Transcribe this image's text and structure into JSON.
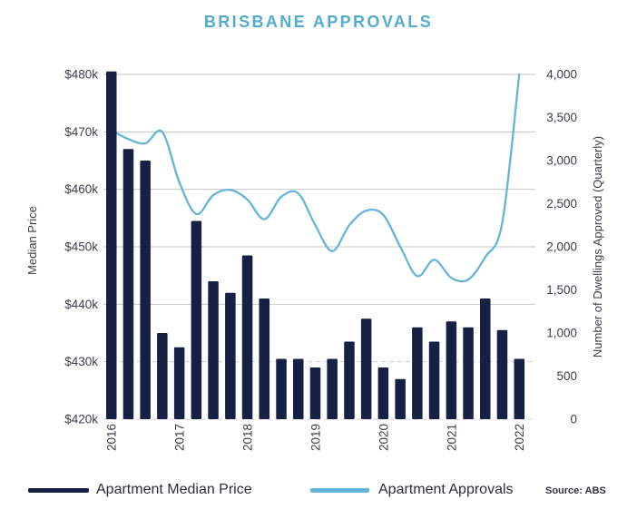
{
  "title": "BRISBANE APPROVALS",
  "source": "Source: ABS",
  "left_axis": {
    "label": "Median Price",
    "min": 420,
    "max": 480,
    "ticks": [
      {
        "value": 480,
        "label": "$480k"
      },
      {
        "value": 470,
        "label": "$470k"
      },
      {
        "value": 460,
        "label": "$460k"
      },
      {
        "value": 450,
        "label": "$450k"
      },
      {
        "value": 440,
        "label": "$440k"
      },
      {
        "value": 430,
        "label": "$430k"
      },
      {
        "value": 420,
        "label": "$420k"
      }
    ]
  },
  "right_axis": {
    "label": "Number of Dwellings Approved (Quarterly)",
    "min": 0,
    "max": 4000,
    "ticks": [
      {
        "value": 4000,
        "label": "4,000"
      },
      {
        "value": 3500,
        "label": "3,500"
      },
      {
        "value": 3000,
        "label": "3,000"
      },
      {
        "value": 2500,
        "label": "2,500"
      },
      {
        "value": 2000,
        "label": "2,000"
      },
      {
        "value": 1500,
        "label": "1,500"
      },
      {
        "value": 1000,
        "label": "1,000"
      },
      {
        "value": 500,
        "label": "500"
      },
      {
        "value": 0,
        "label": "0"
      }
    ]
  },
  "chart_data": {
    "type": "bar+line",
    "x": [
      "2016 Q1",
      "2016 Q2",
      "2016 Q3",
      "2016 Q4",
      "2017 Q1",
      "2017 Q2",
      "2017 Q3",
      "2017 Q4",
      "2018 Q1",
      "2018 Q2",
      "2018 Q3",
      "2018 Q4",
      "2019 Q1",
      "2019 Q2",
      "2019 Q3",
      "2019 Q4",
      "2020 Q1",
      "2020 Q2",
      "2020 Q3",
      "2020 Q4",
      "2021 Q1",
      "2021 Q2",
      "2021 Q3",
      "2021 Q4",
      "2022 Q1"
    ],
    "x_ticks": [
      {
        "index": 0,
        "label": "2016"
      },
      {
        "index": 4,
        "label": "2017"
      },
      {
        "index": 8,
        "label": "2018"
      },
      {
        "index": 12,
        "label": "2019"
      },
      {
        "index": 16,
        "label": "2020"
      },
      {
        "index": 20,
        "label": "2021"
      },
      {
        "index": 24,
        "label": "2022"
      }
    ],
    "series": [
      {
        "name": "Apartment Median Price",
        "type": "bar",
        "axis": "left",
        "unit": "$k",
        "values": [
          480.5,
          467,
          465,
          435,
          432.5,
          454.5,
          444,
          442,
          448.5,
          441,
          430.5,
          430.5,
          429,
          430.5,
          433.5,
          437.5,
          429,
          427,
          436,
          433.5,
          437,
          436,
          441,
          435.5,
          430.5
        ]
      },
      {
        "name": "Apartment Approvals",
        "type": "line",
        "axis": "right",
        "unit": "dwellings per quarter",
        "values": [
          3350,
          3250,
          3200,
          3330,
          2750,
          2380,
          2600,
          2660,
          2550,
          2320,
          2580,
          2620,
          2250,
          1950,
          2250,
          2420,
          2370,
          2000,
          1660,
          1850,
          1640,
          1620,
          1880,
          2280,
          4000
        ]
      }
    ],
    "grid": "horizontal",
    "legend_position": "bottom"
  },
  "legend": [
    {
      "label": "Apartment Median Price",
      "swatch": "bar"
    },
    {
      "label": "Apartment Approvals",
      "swatch": "line"
    }
  ],
  "colors": {
    "bar": "#161f44",
    "line": "#64b5d8",
    "title": "#53abce",
    "grid_solid": "#c6c6c6",
    "grid_dashed": "#ccd0d8",
    "tick_text": "#3d3d4f"
  }
}
